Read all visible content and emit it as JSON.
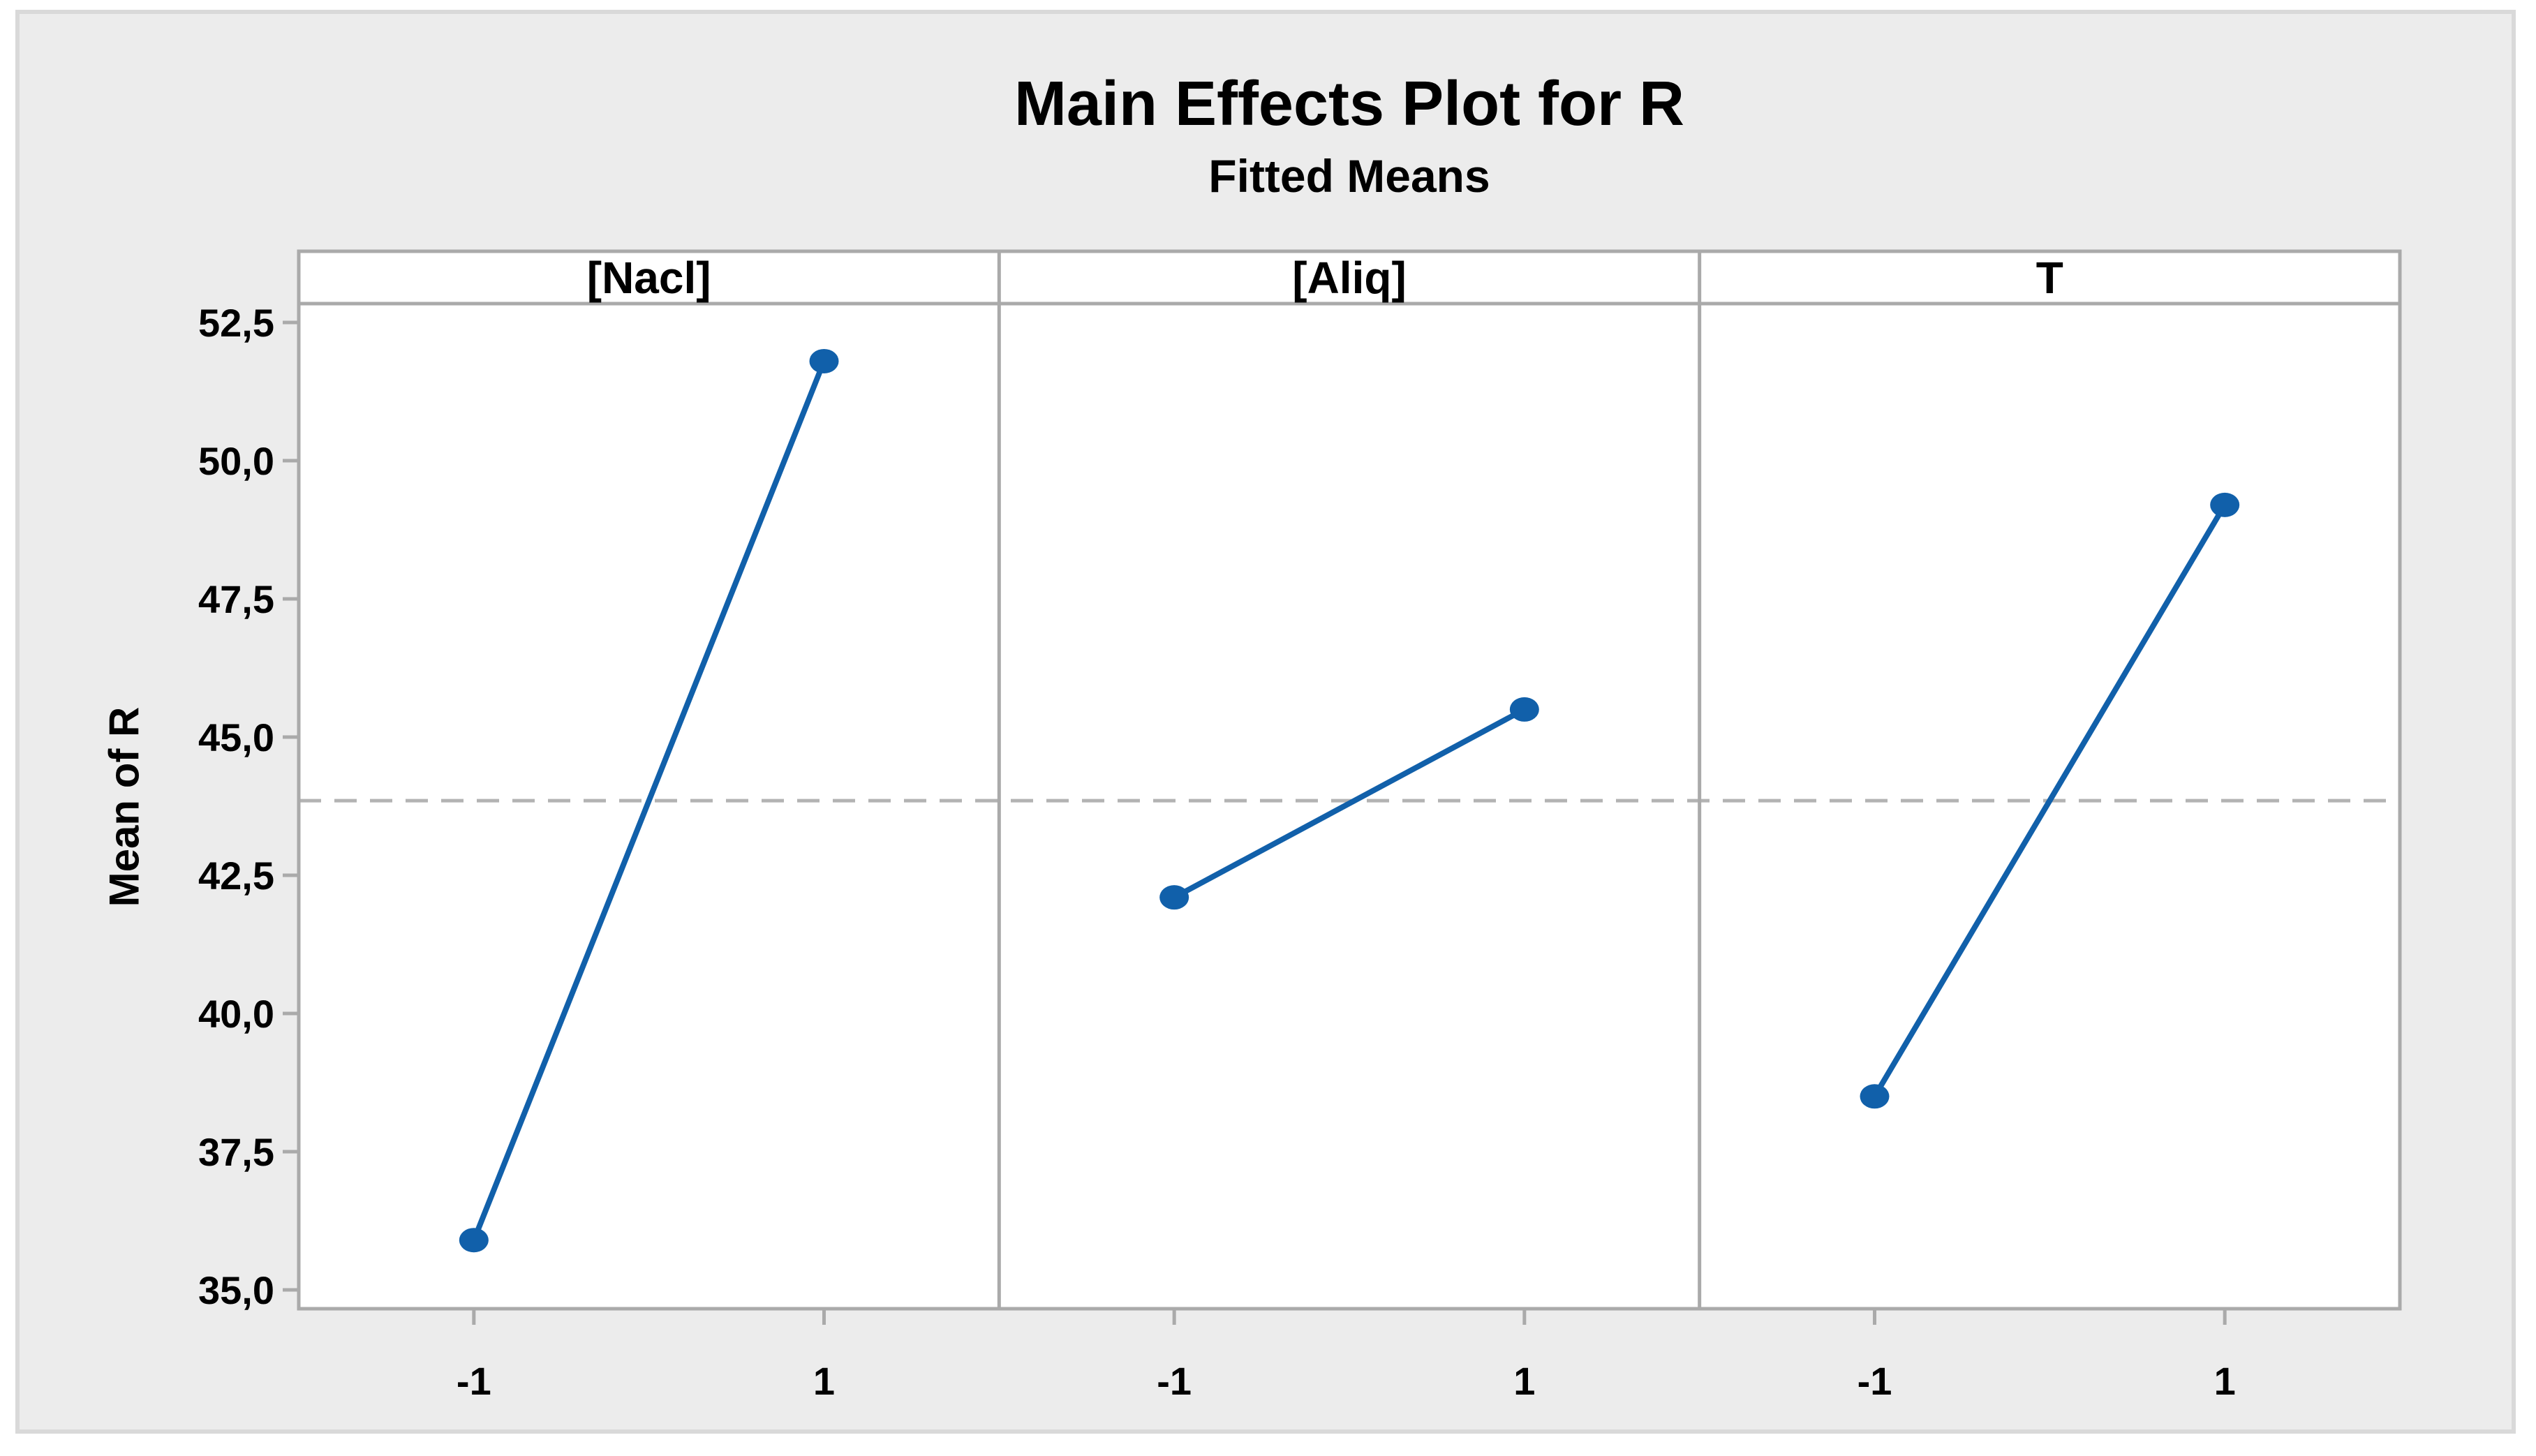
{
  "title": "Main Effects Plot for R",
  "subtitle": "Fitted Means",
  "ylabel": "Mean of R",
  "colors": {
    "figure_background": "#ececec",
    "figure_border": "#d9d9d9",
    "plot_background": "#ffffff",
    "axis_gray": "#aaaaaa",
    "dashed_reference_gray": "#b3b3b3",
    "series_blue": "#1160aa",
    "text_black": "#000000"
  },
  "chart_data": {
    "type": "line",
    "title": "Main Effects Plot for R",
    "subtitle": "Fitted Means",
    "ylabel": "Mean of R",
    "xlabel": "",
    "grid": false,
    "legend": null,
    "panels": [
      {
        "factor": "[Nacl]",
        "x": [
          -1,
          1
        ],
        "means": [
          35.9,
          51.8
        ]
      },
      {
        "factor": "[Aliq]",
        "x": [
          -1,
          1
        ],
        "means": [
          42.1,
          45.5
        ]
      },
      {
        "factor": "T",
        "x": [
          -1,
          1
        ],
        "means": [
          38.5,
          49.2
        ]
      }
    ],
    "reference_mean": 43.85,
    "xtick_labels": [
      "-1",
      "1"
    ],
    "ytick_labels": [
      "52,5",
      "50,0",
      "47,5",
      "45,0",
      "42,5",
      "40,0",
      "37,5",
      "35,0"
    ],
    "ytick_values": [
      52.5,
      50.0,
      47.5,
      45.0,
      42.5,
      40.0,
      37.5,
      35.0
    ],
    "ylim": [
      34.66,
      52.83
    ]
  }
}
